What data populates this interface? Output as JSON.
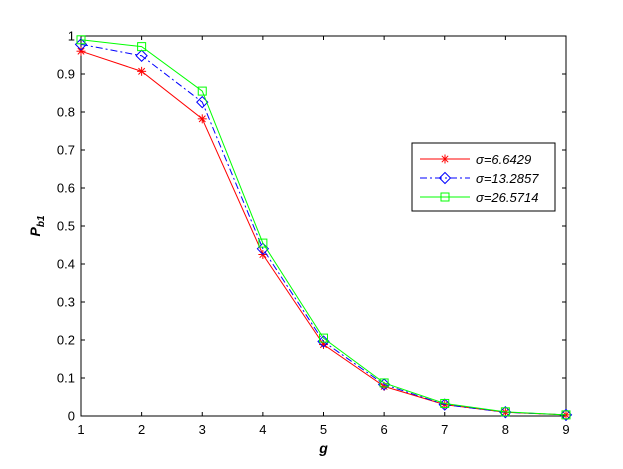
{
  "chart_data": {
    "type": "line",
    "xlabel": "g",
    "ylabel_main": "P",
    "ylabel_sub": "b1",
    "xlim": [
      1,
      9
    ],
    "ylim": [
      0,
      1
    ],
    "x_ticks": [
      "1",
      "2",
      "3",
      "4",
      "5",
      "6",
      "7",
      "8",
      "9"
    ],
    "y_ticks": [
      "0",
      "0.1",
      "0.2",
      "0.3",
      "0.4",
      "0.5",
      "0.6",
      "0.7",
      "0.8",
      "0.9",
      "1"
    ],
    "grid": false,
    "legend_position": "right",
    "x": [
      1,
      2,
      3,
      4,
      5,
      6,
      7,
      8,
      9
    ],
    "series": [
      {
        "name": "σ=6.6429",
        "color": "#ff0000",
        "marker": "asterisk",
        "line_style": "solid",
        "values": [
          0.96,
          0.907,
          0.782,
          0.425,
          0.188,
          0.078,
          0.03,
          0.01,
          0.003
        ]
      },
      {
        "name": "σ=13.2857",
        "color": "#0000ff",
        "marker": "diamond",
        "line_style": "dash-dot",
        "values": [
          0.978,
          0.948,
          0.826,
          0.44,
          0.196,
          0.083,
          0.03,
          0.01,
          0.003
        ]
      },
      {
        "name": "σ=26.5714",
        "color": "#00ff00",
        "marker": "square",
        "line_style": "solid",
        "values": [
          0.99,
          0.972,
          0.855,
          0.455,
          0.205,
          0.087,
          0.033,
          0.011,
          0.003
        ]
      }
    ]
  }
}
